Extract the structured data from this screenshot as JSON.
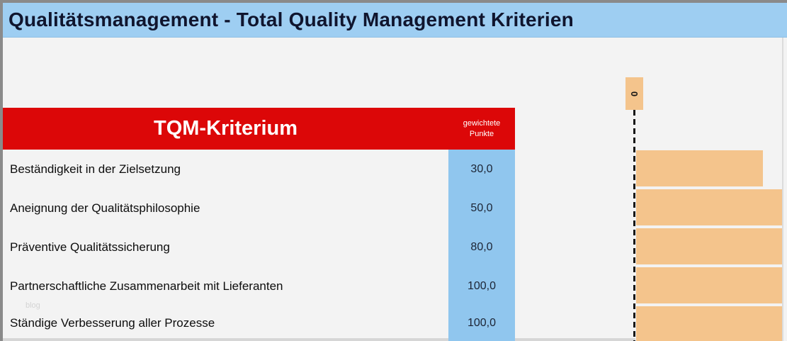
{
  "title": "Qualitätsmanagement - Total Quality Management Kriterien",
  "table": {
    "header": {
      "criterion": "TQM-Kriterium",
      "points_line1": "gewichtete",
      "points_line2": "Punkte"
    },
    "rows": [
      {
        "label": "Beständigkeit in der Zielsetzung",
        "points": "30,0"
      },
      {
        "label": "Aneignung der Qualitätsphilosophie",
        "points": "50,0"
      },
      {
        "label": "Präventive Qualitätssicherung",
        "points": "80,0"
      },
      {
        "label": "Partnerschaftliche Zusammenarbeit mit Lieferanten",
        "points": "100,0"
      },
      {
        "label": "Ständige Verbesserung aller Prozesse",
        "points": "100,0"
      }
    ]
  },
  "chart_data": {
    "type": "bar",
    "orientation": "horizontal",
    "categories": [
      "Beständigkeit in der Zielsetzung",
      "Aneignung der Qualitätsphilosophie",
      "Präventive Qualitätssicherung",
      "Partnerschaftliche Zusammenarbeit mit Lieferanten",
      "Ständige Verbesserung aller Prozesse"
    ],
    "values": [
      30,
      50,
      80,
      100,
      100
    ],
    "title": "",
    "xlabel": "",
    "ylabel": "",
    "x_tick_labels": [
      "0"
    ],
    "xlim": [
      0,
      35
    ],
    "grid": false,
    "legend": false,
    "note_axis_label_visible": "0"
  },
  "watermark": "blog",
  "colors": {
    "title_band": "#9ecef2",
    "title_text": "#10152e",
    "header_red": "#dc0708",
    "value_column_blue": "#90c6ee",
    "bar_orange": "#f4c48c",
    "background": "#f3f3f3",
    "dash_line": "#161616"
  }
}
